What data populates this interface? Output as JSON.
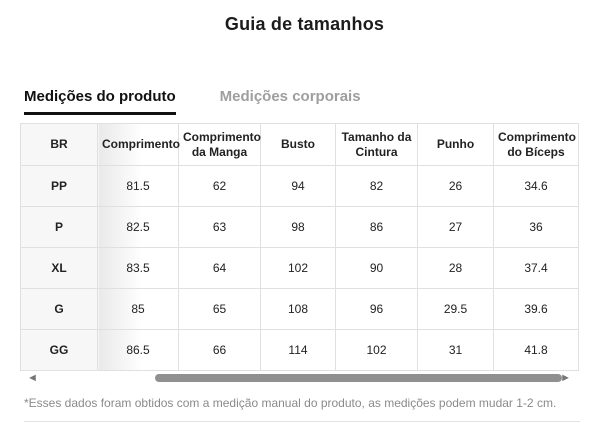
{
  "page": {
    "title": "Guia de tamanhos"
  },
  "tabs": [
    {
      "label": "Medições do produto",
      "active": true
    },
    {
      "label": "Medições corporais",
      "active": false
    }
  ],
  "table": {
    "columns": [
      "BR",
      "Comprimento",
      "Comprimento da Manga",
      "Busto",
      "Tamanho da Cintura",
      "Punho",
      "Comprimento do Bíceps"
    ],
    "rows": [
      {
        "size": "PP",
        "values": [
          "81.5",
          "62",
          "94",
          "82",
          "26",
          "34.6"
        ]
      },
      {
        "size": "P",
        "values": [
          "82.5",
          "63",
          "98",
          "86",
          "27",
          "36"
        ]
      },
      {
        "size": "XL",
        "values": [
          "83.5",
          "64",
          "102",
          "90",
          "28",
          "37.4"
        ]
      },
      {
        "size": "G",
        "values": [
          "85",
          "65",
          "108",
          "96",
          "29.5",
          "39.6"
        ]
      },
      {
        "size": "GG",
        "values": [
          "86.5",
          "66",
          "114",
          "102",
          "31",
          "41.8"
        ]
      }
    ]
  },
  "icons": {
    "scroll_left_glyph": "◄",
    "scroll_right_glyph": "►"
  },
  "footnote": "*Esses dados foram obtidos com a medição manual do produto, as medições podem mudar 1-2 cm.",
  "colors": {
    "active_tab": "#111111",
    "inactive_tab": "#9e9e9e",
    "table_border": "#e0e0e0",
    "first_column_bg": "#f7f7f7",
    "scroll_thumb": "#909090",
    "footnote_text": "#8a8a8a"
  }
}
